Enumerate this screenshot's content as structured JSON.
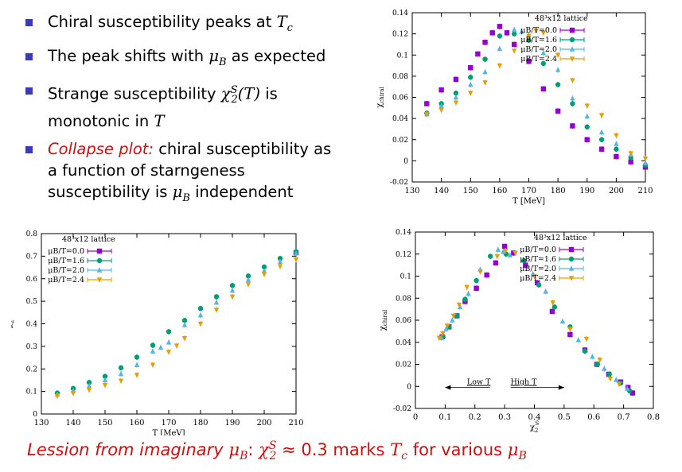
{
  "bullets": {
    "b1": {
      "text": "Chiral susceptibility peaks at ",
      "math": "T",
      "sub": "c"
    },
    "b2": {
      "text_a": "The peak shifts with ",
      "math": "μ",
      "sub": "B",
      "text_b": " as expected"
    },
    "b3": {
      "text_a": "Strange susceptibility ",
      "math": "χ",
      "sup": "S",
      "sub": "2",
      "arg": "(T)",
      "text_b": " is monotonic in ",
      "math_b": "T"
    },
    "b4": {
      "red_text": "Collapse plot:",
      "text": " chiral susceptibility as a function of starngeness susceptibility is ",
      "math": "μ",
      "sub": "B",
      "text_b": " independent"
    }
  },
  "bottom": {
    "lead": "Lession from imaginary ",
    "mu": "μ",
    "mu_sub": "B",
    "colon": ": ",
    "chi": "χ",
    "chi_sup": "S",
    "chi_sub": "2",
    "approx": " ≈ 0.3 marks ",
    "t": "T",
    "t_sub": "c",
    "tail": " for various ",
    "mu2": "μ",
    "mu2_sub": "B"
  },
  "colors": {
    "mu0": "#9400d3",
    "mu16": "#009e73",
    "mu20": "#56b4e9",
    "mu24": "#e69f00"
  },
  "chart_data": [
    {
      "type": "scatter",
      "id": "chi_vs_T",
      "xlabel": "T [MeV]",
      "ylabel": "χchiral",
      "xlim": [
        130,
        210
      ],
      "ylim": [
        -0.02,
        0.14
      ],
      "xticks": [
        130,
        140,
        150,
        160,
        170,
        180,
        190,
        200,
        210
      ],
      "yticks": [
        -0.02,
        0,
        0.02,
        0.04,
        0.06,
        0.08,
        0.1,
        0.12,
        0.14
      ],
      "legend_title": "48³x12 lattice",
      "legend_position": "top-right",
      "series": [
        {
          "name": "μB/T=0.0",
          "marker": "square",
          "x": [
            135,
            140,
            145,
            150,
            152.5,
            155,
            157.5,
            160,
            162.5,
            165,
            170,
            175,
            180,
            185,
            190,
            195,
            200,
            205,
            210
          ],
          "y": [
            0.054,
            0.067,
            0.077,
            0.088,
            0.101,
            0.112,
            0.121,
            0.127,
            0.121,
            0.11,
            0.094,
            0.068,
            0.047,
            0.033,
            0.02,
            0.011,
            0.004,
            -0.001,
            -0.006
          ]
        },
        {
          "name": "μB/T=1.6",
          "marker": "circle",
          "x": [
            135,
            140,
            145,
            150,
            155,
            160,
            165,
            170,
            175,
            180,
            185,
            190,
            195,
            200,
            205,
            210
          ],
          "y": [
            0.045,
            0.054,
            0.064,
            0.079,
            0.096,
            0.118,
            0.12,
            0.114,
            0.092,
            0.072,
            0.054,
            0.032,
            0.02,
            0.011,
            0.003,
            -0.004
          ]
        },
        {
          "name": "μB/T=2.0",
          "marker": "triangle-up",
          "x": [
            135,
            140,
            145,
            150,
            155,
            160,
            165,
            167.5,
            170,
            175,
            180,
            185,
            190,
            195,
            200,
            205,
            210
          ],
          "y": [
            0.044,
            0.052,
            0.06,
            0.072,
            0.084,
            0.106,
            0.124,
            0.122,
            0.119,
            0.102,
            0.086,
            0.059,
            0.042,
            0.027,
            0.016,
            0.006,
            -0.002
          ]
        },
        {
          "name": "μB/T=2.4",
          "marker": "triangle-down",
          "x": [
            135,
            140,
            145,
            150,
            155,
            160,
            165,
            170,
            172.5,
            175,
            180,
            185,
            190,
            195,
            200,
            205,
            210
          ],
          "y": [
            0.044,
            0.048,
            0.055,
            0.064,
            0.074,
            0.09,
            0.104,
            0.118,
            0.123,
            0.121,
            0.1,
            0.076,
            0.052,
            0.043,
            0.024,
            0.007,
            0.002
          ]
        }
      ]
    },
    {
      "type": "scatter",
      "id": "chi2S_vs_T",
      "xlabel": "T [MeV]",
      "ylabel": "χ2S",
      "xlim": [
        130,
        210
      ],
      "ylim": [
        0,
        0.8
      ],
      "xticks": [
        130,
        140,
        150,
        160,
        170,
        180,
        190,
        200,
        210
      ],
      "yticks": [
        0,
        0.1,
        0.2,
        0.3,
        0.4,
        0.5,
        0.6,
        0.7,
        0.8
      ],
      "legend_title": "48³x12 lattice",
      "legend_position": "top-left",
      "series": [
        {
          "name": "μB/T=0.0",
          "marker": "square",
          "x": [
            210
          ],
          "y": [
            0.715
          ]
        },
        {
          "name": "μB/T=1.6",
          "marker": "circle",
          "x": [
            135,
            140,
            145,
            150,
            155,
            160,
            165,
            170,
            175,
            180,
            185,
            190,
            195,
            200,
            205,
            210
          ],
          "y": [
            0.093,
            0.113,
            0.14,
            0.167,
            0.205,
            0.252,
            0.305,
            0.365,
            0.415,
            0.468,
            0.52,
            0.57,
            0.612,
            0.652,
            0.69,
            0.72
          ]
        },
        {
          "name": "μB/T=2.0",
          "marker": "triangle-up",
          "x": [
            135,
            140,
            145,
            150,
            155,
            160,
            165,
            167.5,
            170,
            175,
            180,
            185,
            190,
            195,
            200,
            205,
            210
          ],
          "y": [
            0.087,
            0.103,
            0.124,
            0.15,
            0.178,
            0.218,
            0.278,
            0.295,
            0.318,
            0.395,
            0.438,
            0.495,
            0.548,
            0.595,
            0.635,
            0.675,
            0.712
          ]
        },
        {
          "name": "μB/T=2.4",
          "marker": "triangle-down",
          "x": [
            135,
            140,
            145,
            150,
            155,
            160,
            165,
            170,
            172.5,
            175,
            180,
            185,
            190,
            195,
            200,
            205,
            210
          ],
          "y": [
            0.08,
            0.092,
            0.107,
            0.128,
            0.147,
            0.173,
            0.218,
            0.275,
            0.303,
            0.336,
            0.4,
            0.462,
            0.52,
            0.575,
            0.62,
            0.655,
            0.685
          ]
        }
      ]
    },
    {
      "type": "scatter",
      "id": "chi_vs_chi2S",
      "xlabel": "χ2S",
      "ylabel": "χchiral",
      "xlim": [
        0,
        0.8
      ],
      "ylim": [
        -0.02,
        0.14
      ],
      "xticks": [
        0,
        0.1,
        0.2,
        0.3,
        0.4,
        0.5,
        0.6,
        0.7,
        0.8
      ],
      "yticks": [
        -0.02,
        0,
        0.02,
        0.04,
        0.06,
        0.08,
        0.1,
        0.12,
        0.14
      ],
      "legend_title": "48³x12 lattice",
      "legend_position": "top-right",
      "annotations": [
        {
          "text": "Low T",
          "arrow": "left",
          "x_from": 0.25,
          "x_to": 0.1,
          "y": -0.001
        },
        {
          "text": "High T",
          "arrow": "right",
          "x_from": 0.32,
          "x_to": 0.5,
          "y": -0.001
        }
      ],
      "series": [
        {
          "name": "μB/T=0.0",
          "marker": "square",
          "x": [
            0.09,
            0.113,
            0.14,
            0.167,
            0.205,
            0.24,
            0.27,
            0.3,
            0.33,
            0.37,
            0.41,
            0.46,
            0.52,
            0.57,
            0.61,
            0.65,
            0.69,
            0.715,
            0.73
          ],
          "y": [
            0.045,
            0.054,
            0.064,
            0.077,
            0.089,
            0.101,
            0.112,
            0.127,
            0.121,
            0.11,
            0.094,
            0.068,
            0.047,
            0.033,
            0.02,
            0.011,
            0.004,
            -0.001,
            -0.006
          ]
        },
        {
          "name": "μB/T=1.6",
          "marker": "circle",
          "x": [
            0.093,
            0.113,
            0.14,
            0.167,
            0.205,
            0.252,
            0.305,
            0.365,
            0.415,
            0.468,
            0.52,
            0.57,
            0.612,
            0.652,
            0.69,
            0.72
          ],
          "y": [
            0.045,
            0.054,
            0.064,
            0.079,
            0.096,
            0.118,
            0.12,
            0.114,
            0.092,
            0.072,
            0.054,
            0.032,
            0.02,
            0.011,
            0.003,
            -0.004
          ]
        },
        {
          "name": "μB/T=2.0",
          "marker": "triangle-up",
          "x": [
            0.087,
            0.103,
            0.124,
            0.15,
            0.178,
            0.218,
            0.278,
            0.295,
            0.318,
            0.395,
            0.438,
            0.495,
            0.548,
            0.595,
            0.635,
            0.675,
            0.712
          ],
          "y": [
            0.044,
            0.052,
            0.06,
            0.072,
            0.084,
            0.106,
            0.124,
            0.122,
            0.119,
            0.102,
            0.086,
            0.059,
            0.042,
            0.027,
            0.016,
            0.006,
            -0.002
          ]
        },
        {
          "name": "μB/T=2.4",
          "marker": "triangle-down",
          "x": [
            0.08,
            0.092,
            0.107,
            0.128,
            0.147,
            0.173,
            0.218,
            0.275,
            0.303,
            0.336,
            0.4,
            0.462,
            0.52,
            0.575,
            0.62,
            0.655,
            0.685
          ],
          "y": [
            0.044,
            0.048,
            0.055,
            0.064,
            0.074,
            0.09,
            0.104,
            0.118,
            0.123,
            0.121,
            0.1,
            0.076,
            0.052,
            0.043,
            0.024,
            0.007,
            0.002
          ]
        }
      ]
    }
  ]
}
